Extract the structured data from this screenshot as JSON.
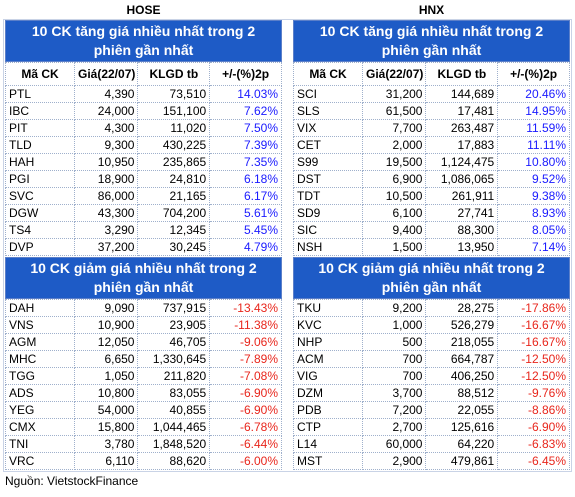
{
  "panels": [
    {
      "exchange": "HOSE",
      "columns": [
        "Mã CK",
        "Giá(22/07)",
        "KLGD tb",
        "+/-(%)2p"
      ],
      "gainers": {
        "title": "10 CK tăng giá nhiều nhất trong 2 phiên gần nhất",
        "rows": [
          [
            "PTL",
            "4,390",
            "73,510",
            "14.03%"
          ],
          [
            "IBC",
            "24,000",
            "151,100",
            "7.62%"
          ],
          [
            "PIT",
            "4,300",
            "11,020",
            "7.50%"
          ],
          [
            "TLD",
            "9,300",
            "430,225",
            "7.39%"
          ],
          [
            "HAH",
            "10,950",
            "235,865",
            "7.35%"
          ],
          [
            "PGI",
            "18,900",
            "24,810",
            "6.18%"
          ],
          [
            "SVC",
            "86,000",
            "21,165",
            "6.17%"
          ],
          [
            "DGW",
            "43,300",
            "704,200",
            "5.61%"
          ],
          [
            "TS4",
            "3,290",
            "12,345",
            "5.45%"
          ],
          [
            "DVP",
            "37,200",
            "30,245",
            "4.79%"
          ]
        ]
      },
      "losers": {
        "title": "10 CK giảm giá nhiều nhất trong 2 phiên gần nhất",
        "rows": [
          [
            "DAH",
            "9,090",
            "737,915",
            "-13.43%"
          ],
          [
            "VNS",
            "10,900",
            "23,905",
            "-11.38%"
          ],
          [
            "AGM",
            "12,050",
            "46,705",
            "-9.06%"
          ],
          [
            "MHC",
            "6,650",
            "1,330,645",
            "-7.89%"
          ],
          [
            "TGG",
            "1,050",
            "211,820",
            "-7.08%"
          ],
          [
            "ADS",
            "10,800",
            "83,055",
            "-6.90%"
          ],
          [
            "YEG",
            "54,000",
            "40,855",
            "-6.90%"
          ],
          [
            "CMX",
            "15,800",
            "1,044,465",
            "-6.78%"
          ],
          [
            "TNI",
            "3,780",
            "1,848,520",
            "-6.44%"
          ],
          [
            "VRC",
            "6,110",
            "88,620",
            "-6.00%"
          ]
        ]
      }
    },
    {
      "exchange": "HNX",
      "columns": [
        "Mã CK",
        "Giá(22/07)",
        "KLGD tb",
        "+/-(%)2p"
      ],
      "gainers": {
        "title": "10 CK tăng giá nhiều nhất trong 2 phiên gần nhất",
        "rows": [
          [
            "SCI",
            "31,200",
            "144,689",
            "20.46%"
          ],
          [
            "SLS",
            "61,500",
            "17,481",
            "14.95%"
          ],
          [
            "VIX",
            "7,700",
            "263,487",
            "11.59%"
          ],
          [
            "CET",
            "2,000",
            "17,883",
            "11.11%"
          ],
          [
            "S99",
            "19,500",
            "1,124,475",
            "10.80%"
          ],
          [
            "DST",
            "6,900",
            "1,086,065",
            "9.52%"
          ],
          [
            "TDT",
            "10,500",
            "261,911",
            "9.38%"
          ],
          [
            "SD9",
            "6,100",
            "27,741",
            "8.93%"
          ],
          [
            "SIC",
            "9,400",
            "88,300",
            "8.05%"
          ],
          [
            "NSH",
            "1,500",
            "13,950",
            "7.14%"
          ]
        ]
      },
      "losers": {
        "title": "10 CK giảm giá nhiều nhất trong 2 phiên gần nhất",
        "rows": [
          [
            "TKU",
            "9,200",
            "28,275",
            "-17.86%"
          ],
          [
            "KVC",
            "1,000",
            "526,279",
            "-16.67%"
          ],
          [
            "NHP",
            "500",
            "218,055",
            "-16.67%"
          ],
          [
            "ACM",
            "700",
            "664,787",
            "-12.50%"
          ],
          [
            "VIG",
            "700",
            "406,250",
            "-12.50%"
          ],
          [
            "DZM",
            "3,700",
            "88,512",
            "-9.76%"
          ],
          [
            "PDB",
            "7,200",
            "22,055",
            "-8.86%"
          ],
          [
            "CTP",
            "2,700",
            "125,616",
            "-6.90%"
          ],
          [
            "L14",
            "60,000",
            "64,220",
            "-6.83%"
          ],
          [
            "MST",
            "2,900",
            "479,861",
            "-6.45%"
          ]
        ]
      }
    }
  ],
  "source": "Nguồn: VietstockFinance"
}
